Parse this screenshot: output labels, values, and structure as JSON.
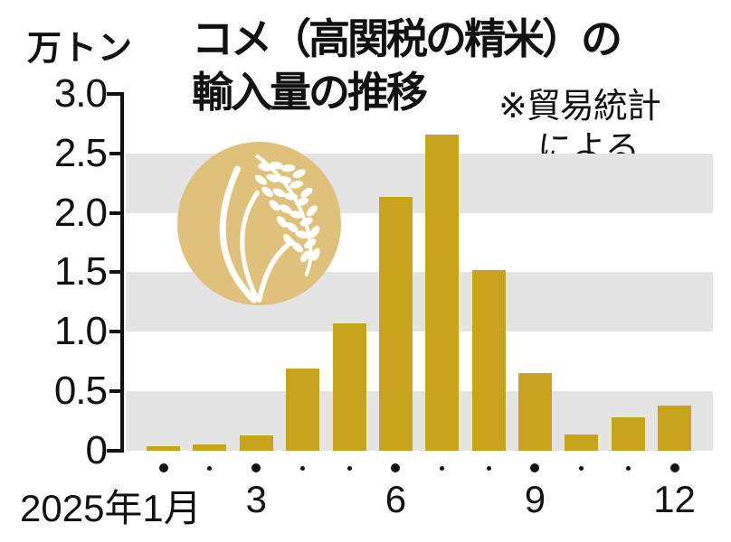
{
  "unit_label": "万トン",
  "title": {
    "line1": "コメ（高関税の精米）の",
    "line2": "輸入量の推移"
  },
  "note": {
    "line1": "※貿易統計",
    "line2": "による"
  },
  "colors": {
    "bar": "#c8a31d",
    "band": "#e4e4e5",
    "axis": "#111111",
    "icon_circle": "#dfc17c",
    "icon_plant": "#ffffff"
  },
  "chart_data": {
    "type": "bar",
    "title": "コメ（高関税の精米）の輸入量の推移",
    "source_note": "※貿易統計による",
    "ylabel": "万トン",
    "ylim": [
      0,
      3.0
    ],
    "y_ticks": [
      "3.0",
      "2.5",
      "2.0",
      "1.5",
      "1.0",
      "0.5",
      "0"
    ],
    "shaded_bands": [
      [
        2.0,
        2.5
      ],
      [
        1.0,
        1.5
      ],
      [
        0,
        0.5
      ]
    ],
    "x": [
      1,
      2,
      3,
      4,
      5,
      6,
      7,
      8,
      9,
      10,
      11,
      12
    ],
    "x_major_ticks": [
      1,
      3,
      6,
      9,
      12
    ],
    "x_tick_labels": {
      "1": "2025年1月",
      "3": "3",
      "6": "6",
      "9": "9",
      "12": "12"
    },
    "values": [
      0.04,
      0.05,
      0.13,
      0.69,
      1.07,
      2.13,
      2.66,
      1.52,
      0.65,
      0.14,
      0.28,
      0.38
    ],
    "legend": "none",
    "grid": "alternating horizontal shaded bands"
  }
}
